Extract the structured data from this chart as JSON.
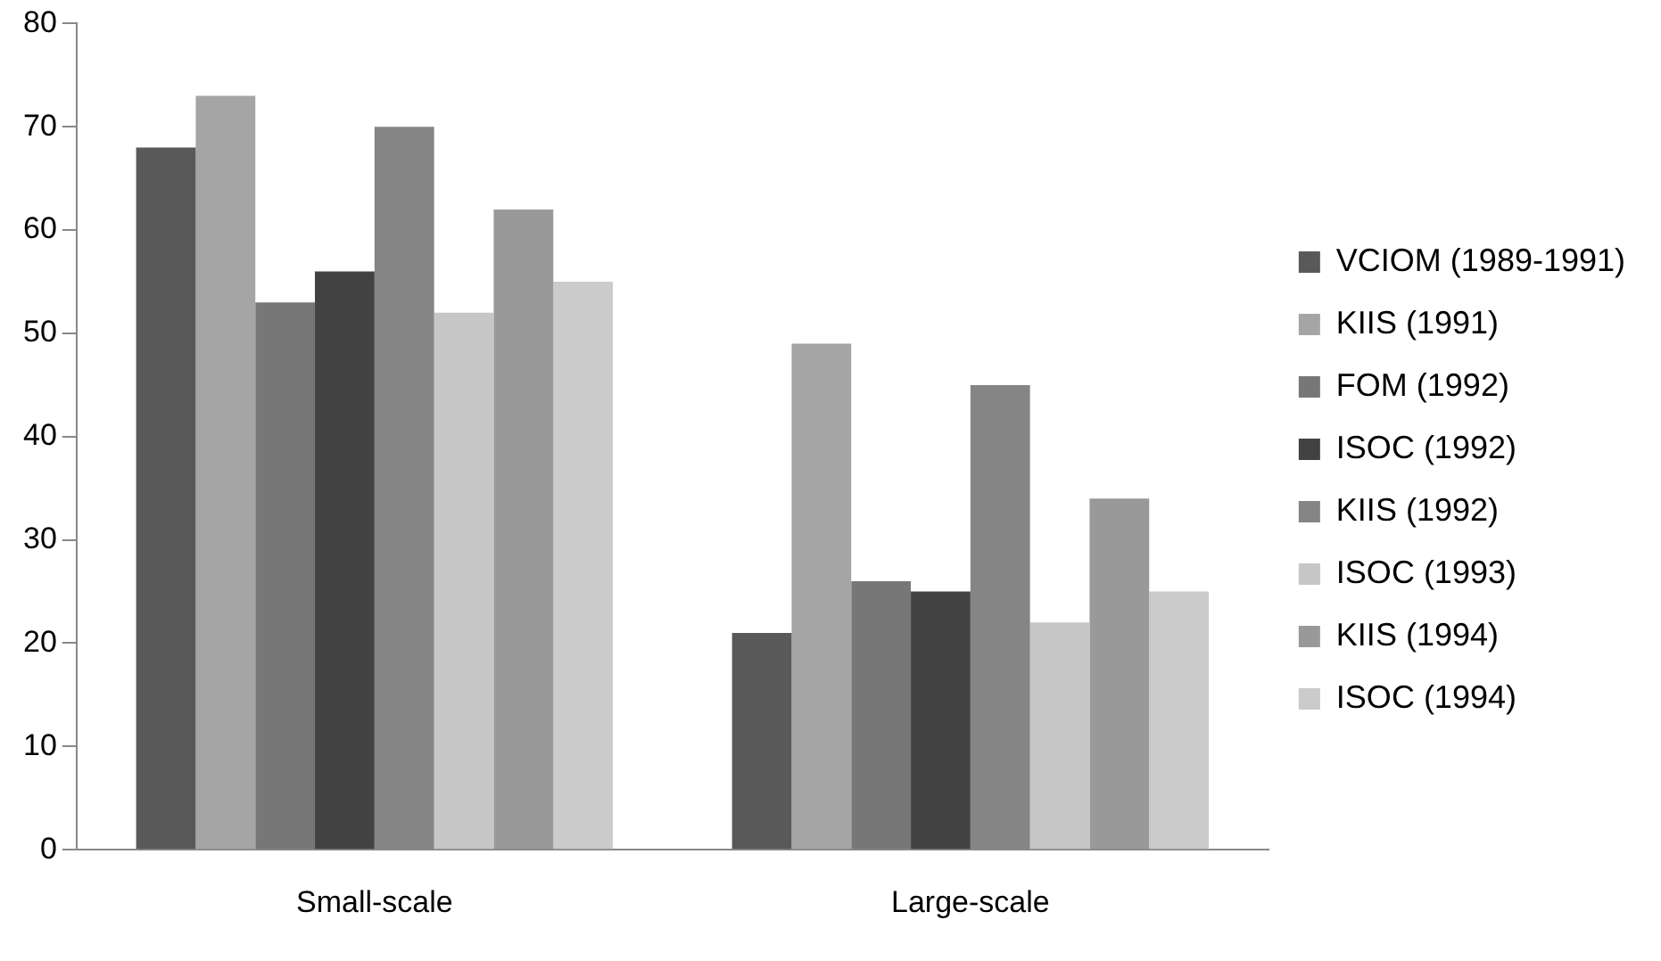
{
  "chart_data": {
    "type": "bar",
    "categories": [
      "Small-scale",
      "Large-scale"
    ],
    "series": [
      {
        "name": "VCIOM (1989-1991)",
        "color": "#595959",
        "values": [
          68,
          21
        ]
      },
      {
        "name": "KIIS (1991)",
        "color": "#a5a5a5",
        "values": [
          73,
          49
        ]
      },
      {
        "name": "FOM (1992)",
        "color": "#777777",
        "values": [
          53,
          26
        ]
      },
      {
        "name": "ISOC (1992)",
        "color": "#424242",
        "values": [
          56,
          25
        ]
      },
      {
        "name": "KIIS (1992)",
        "color": "#858585",
        "values": [
          70,
          45
        ]
      },
      {
        "name": "ISOC (1993)",
        "color": "#c6c6c6",
        "values": [
          52,
          22
        ]
      },
      {
        "name": "KIIS (1994)",
        "color": "#999999",
        "values": [
          62,
          34
        ]
      },
      {
        "name": "ISOC (1994)",
        "color": "#cbcbcb",
        "values": [
          55,
          25
        ]
      }
    ],
    "ylim": [
      0,
      80
    ],
    "yticks": [
      0,
      10,
      20,
      30,
      40,
      50,
      60,
      70,
      80
    ],
    "grid": false,
    "legend": "right"
  }
}
